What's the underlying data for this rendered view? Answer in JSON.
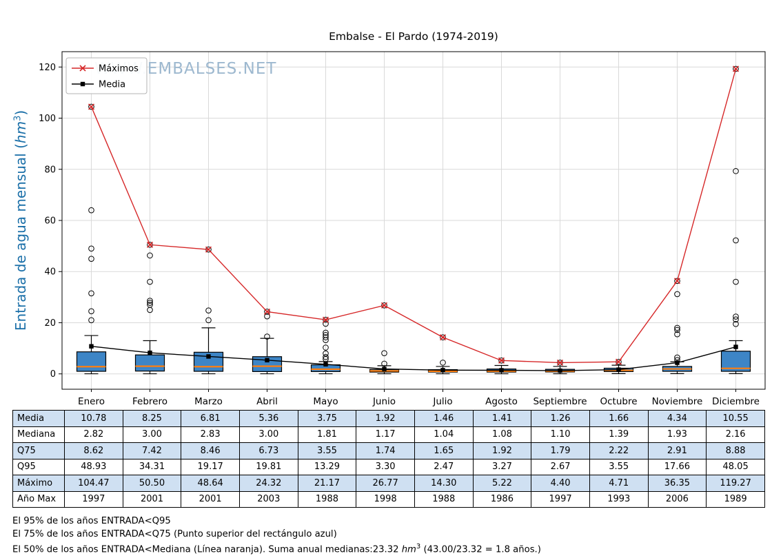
{
  "title": "Embalse - El Pardo (1974-2019)",
  "ylabel": {
    "prefix": "Entrada de agua mensual (",
    "unit": "hm",
    "sup": "3",
    "suffix": ")"
  },
  "watermark": "WWW.EMBALSES.NET",
  "legend": [
    {
      "label": "Máximos",
      "color": "#d62728",
      "marker": "x"
    },
    {
      "label": "Media",
      "color": "#000000",
      "marker": "square"
    }
  ],
  "colors": {
    "ylabel_blue": "#1a6fa8",
    "box_fill": "#3d85c6",
    "median_orange": "#ff7f0e",
    "maximos_red": "#d62728",
    "media_black": "#000000",
    "watermark": "#9db8cf",
    "table_shaded": "#cfe0f2",
    "grid": "#d9d9d9"
  },
  "chart_data": {
    "type": "boxplot",
    "title": "Embalse - El Pardo (1974-2019)",
    "ylabel": "Entrada de agua mensual (hm³)",
    "categories": [
      "Enero",
      "Febrero",
      "Marzo",
      "Abril",
      "Mayo",
      "Junio",
      "Julio",
      "Agosto",
      "Septiembre",
      "Octubre",
      "Noviembre",
      "Diciembre"
    ],
    "yticks": [
      0,
      20,
      40,
      60,
      80,
      100,
      120
    ],
    "ylim": [
      -6,
      126
    ],
    "grid": true,
    "legend_position": "upper-left",
    "box_fill": "#3d85c6",
    "median_color": "#ff7f0e",
    "series": [
      {
        "name": "Máximos",
        "type": "line",
        "marker": "x",
        "color": "#d62728",
        "values": [
          104.47,
          50.5,
          48.64,
          24.32,
          21.17,
          26.77,
          14.3,
          5.22,
          4.4,
          4.71,
          36.35,
          119.27
        ]
      },
      {
        "name": "Media",
        "type": "line",
        "marker": "square",
        "color": "#000000",
        "values": [
          10.78,
          8.25,
          6.81,
          5.36,
          3.75,
          1.92,
          1.46,
          1.41,
          1.26,
          1.66,
          4.34,
          10.55
        ]
      }
    ],
    "boxes": [
      {
        "month": "Enero",
        "q25": 1.0,
        "median": 2.82,
        "q75": 8.62,
        "whisker_low": 0.05,
        "whisker_high": 15.0,
        "outliers": [
          21.0,
          24.5,
          31.5,
          45.0,
          49.0,
          64.0,
          104.47
        ]
      },
      {
        "month": "Febrero",
        "q25": 1.1,
        "median": 3.0,
        "q75": 7.42,
        "whisker_low": 0.05,
        "whisker_high": 13.0,
        "outliers": [
          25.0,
          27.0,
          27.8,
          28.6,
          36.0,
          46.3,
          50.5
        ]
      },
      {
        "month": "Marzo",
        "q25": 1.0,
        "median": 2.83,
        "q75": 8.46,
        "whisker_low": 0.05,
        "whisker_high": 18.0,
        "outliers": [
          21.0,
          24.8,
          48.64
        ]
      },
      {
        "month": "Abril",
        "q25": 0.9,
        "median": 3.0,
        "q75": 6.73,
        "whisker_low": 0.05,
        "whisker_high": 13.9,
        "outliers": [
          14.6,
          22.5,
          24.32
        ]
      },
      {
        "month": "Mayo",
        "q25": 0.9,
        "median": 1.81,
        "q75": 3.55,
        "whisker_low": 0.05,
        "whisker_high": 4.8,
        "outliers": [
          5.8,
          6.6,
          8.0,
          10.3,
          13.2,
          14.3,
          15.2,
          16.1,
          19.6,
          21.17
        ]
      },
      {
        "month": "Junio",
        "q25": 0.7,
        "median": 1.17,
        "q75": 1.74,
        "whisker_low": 0.05,
        "whisker_high": 3.2,
        "outliers": [
          4.0,
          8.1,
          26.77
        ]
      },
      {
        "month": "Julio",
        "q25": 0.7,
        "median": 1.04,
        "q75": 1.65,
        "whisker_low": 0.05,
        "whisker_high": 2.9,
        "outliers": [
          4.4,
          14.3
        ]
      },
      {
        "month": "Agosto",
        "q25": 0.7,
        "median": 1.08,
        "q75": 1.92,
        "whisker_low": 0.05,
        "whisker_high": 3.3,
        "outliers": [
          5.22
        ]
      },
      {
        "month": "Septiembre",
        "q25": 0.75,
        "median": 1.1,
        "q75": 1.79,
        "whisker_low": 0.05,
        "whisker_high": 2.9,
        "outliers": [
          4.4
        ]
      },
      {
        "month": "Octubre",
        "q25": 0.9,
        "median": 1.39,
        "q75": 2.22,
        "whisker_low": 0.1,
        "whisker_high": 3.4,
        "outliers": [
          4.71
        ]
      },
      {
        "month": "Noviembre",
        "q25": 1.0,
        "median": 1.93,
        "q75": 2.91,
        "whisker_low": 0.1,
        "whisker_high": 4.7,
        "outliers": [
          5.4,
          6.4,
          15.5,
          17.2,
          18.0,
          31.2,
          36.35
        ]
      },
      {
        "month": "Diciembre",
        "q25": 1.0,
        "median": 2.16,
        "q75": 8.88,
        "whisker_low": 0.1,
        "whisker_high": 13.0,
        "outliers": [
          19.5,
          21.3,
          22.4,
          36.0,
          52.2,
          79.3,
          119.27
        ]
      }
    ]
  },
  "table": {
    "columns": [
      "Enero",
      "Febrero",
      "Marzo",
      "Abril",
      "Mayo",
      "Junio",
      "Julio",
      "Agosto",
      "Septiembre",
      "Octubre",
      "Noviembre",
      "Diciembre"
    ],
    "rows": [
      {
        "label": "Media",
        "shaded": true,
        "values": [
          "10.78",
          "8.25",
          "6.81",
          "5.36",
          "3.75",
          "1.92",
          "1.46",
          "1.41",
          "1.26",
          "1.66",
          "4.34",
          "10.55"
        ]
      },
      {
        "label": "Mediana",
        "shaded": false,
        "values": [
          "2.82",
          "3.00",
          "2.83",
          "3.00",
          "1.81",
          "1.17",
          "1.04",
          "1.08",
          "1.10",
          "1.39",
          "1.93",
          "2.16"
        ]
      },
      {
        "label": "Q75",
        "shaded": true,
        "values": [
          "8.62",
          "7.42",
          "8.46",
          "6.73",
          "3.55",
          "1.74",
          "1.65",
          "1.92",
          "1.79",
          "2.22",
          "2.91",
          "8.88"
        ]
      },
      {
        "label": "Q95",
        "shaded": false,
        "values": [
          "48.93",
          "34.31",
          "19.17",
          "19.81",
          "13.29",
          "3.30",
          "2.47",
          "3.27",
          "2.67",
          "3.55",
          "17.66",
          "48.05"
        ]
      },
      {
        "label": "Máximo",
        "shaded": true,
        "values": [
          "104.47",
          "50.50",
          "48.64",
          "24.32",
          "21.17",
          "26.77",
          "14.30",
          "5.22",
          "4.40",
          "4.71",
          "36.35",
          "119.27"
        ]
      },
      {
        "label": "Año Max",
        "shaded": false,
        "values": [
          "1997",
          "2001",
          "2001",
          "2003",
          "1988",
          "1998",
          "1988",
          "1986",
          "1997",
          "1993",
          "2006",
          "1989"
        ]
      }
    ]
  },
  "footer": {
    "line1": "El 95% de los años ENTRADA<Q95",
    "line2": "El 75% de los años ENTRADA<Q75 (Punto superior del rectángulo azul)",
    "line3_pre": "El 50% de los años ENTRADA<Mediana (Línea naranja). Suma anual medianas:23.32 ",
    "line3_unit": "hm",
    "line3_sup": "3",
    "line3_post": " (43.00/23.32 = 1.8 años.)"
  }
}
